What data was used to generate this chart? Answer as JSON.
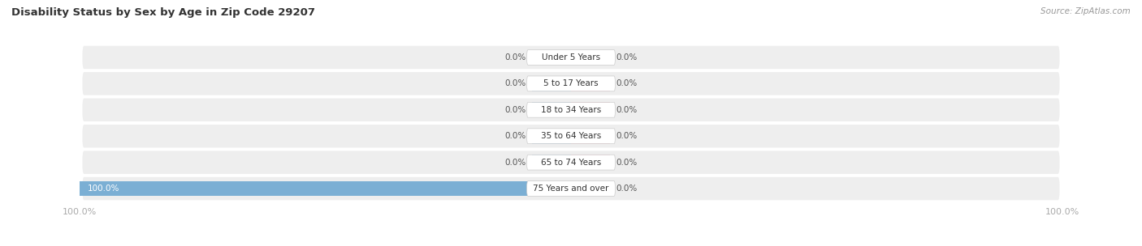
{
  "title": "Disability Status by Sex by Age in Zip Code 29207",
  "source": "Source: ZipAtlas.com",
  "categories": [
    "Under 5 Years",
    "5 to 17 Years",
    "18 to 34 Years",
    "35 to 64 Years",
    "65 to 74 Years",
    "75 Years and over"
  ],
  "male_values": [
    0.0,
    0.0,
    0.0,
    0.0,
    0.0,
    100.0
  ],
  "female_values": [
    0.0,
    0.0,
    0.0,
    0.0,
    0.0,
    0.0
  ],
  "male_color": "#7bafd4",
  "female_color": "#f4a0b5",
  "row_bg_color": "#eeeeee",
  "label_color": "#555555",
  "title_color": "#333333",
  "source_color": "#999999",
  "axis_label_color": "#aaaaaa",
  "max_val": 100.0,
  "stub_val": 8.0,
  "figsize": [
    14.06,
    3.04
  ],
  "dpi": 100
}
